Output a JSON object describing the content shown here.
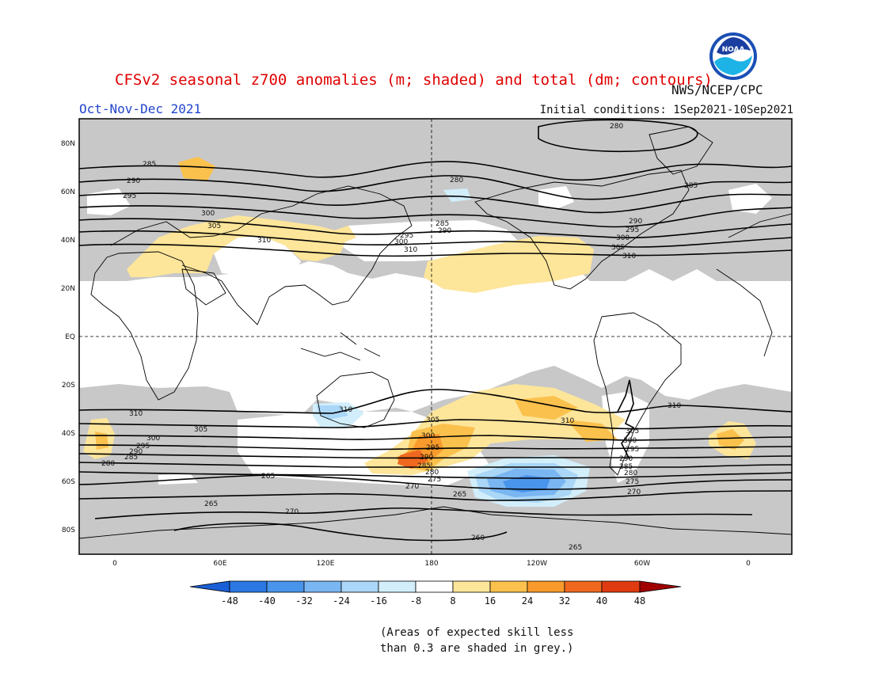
{
  "header": {
    "title": "CFSv2 seasonal z700 anomalies (m; shaded) and total (dm; contours)",
    "season": "Oct-Nov-Dec 2021",
    "initial_conditions": "Initial conditions: 1Sep2021-10Sep2021",
    "agency": "NWS/NCEP/CPC",
    "logo_text": "NOAA"
  },
  "map": {
    "projection": "cylindrical equidistant",
    "lat_labels": [
      "80N",
      "60N",
      "40N",
      "20N",
      "EQ",
      "20S",
      "40S",
      "60S",
      "80S"
    ],
    "lon_labels": [
      "0",
      "60E",
      "120E",
      "180",
      "120W",
      "60W",
      "0"
    ],
    "colors": {
      "skill_grey": "#c8c8c8",
      "land_outline": "#000000",
      "contour": "#000000"
    }
  },
  "contours": {
    "labels": [
      "280",
      "285",
      "290",
      "295",
      "300",
      "305",
      "310",
      "305",
      "300",
      "295",
      "290",
      "285",
      "280",
      "275",
      "270",
      "265",
      "260"
    ]
  },
  "colorbar": {
    "ticks": [
      "-48",
      "-40",
      "-32",
      "-24",
      "-16",
      "-8",
      "8",
      "16",
      "24",
      "32",
      "40",
      "48"
    ],
    "colors": [
      "#1a5fd6",
      "#2b78e4",
      "#4a95ec",
      "#7ab6f2",
      "#aad6f7",
      "#d2eefb",
      "#ffffff",
      "#fde59a",
      "#fbc14d",
      "#f89a2c",
      "#f06820",
      "#e03a10",
      "#c81008",
      "#a00000"
    ]
  },
  "notes": {
    "line1": "(Areas of expected skill less",
    "line2": "than 0.3 are shaded in grey.)"
  }
}
